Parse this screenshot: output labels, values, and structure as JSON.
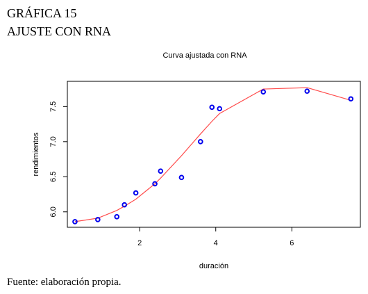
{
  "header": {
    "figure_label": "GRÁFICA 15",
    "figure_title": "AJUSTE CON RNA"
  },
  "source_note": "Fuente: elaboración propia.",
  "chart_data": {
    "type": "scatter",
    "title": "Curva ajustada con RNA",
    "xlabel": "duración",
    "ylabel": "rendimientos",
    "xlim": [
      0.1,
      7.8
    ],
    "ylim": [
      5.78,
      7.86
    ],
    "xticks": [
      2,
      4,
      6
    ],
    "yticks": [
      6.0,
      6.5,
      7.0,
      7.5
    ],
    "ytick_labels": [
      "6.0",
      "6.5",
      "7.0",
      "7.5"
    ],
    "grid": false,
    "colors": {
      "points": "#0000ee",
      "curve": "#ff4d4d",
      "axes": "#000000"
    },
    "series": [
      {
        "kind": "points",
        "x": [
          0.3,
          0.9,
          1.4,
          1.6,
          1.9,
          2.4,
          2.55,
          3.1,
          3.6,
          3.9,
          4.1,
          5.25,
          6.4,
          7.55
        ],
        "y": [
          5.86,
          5.89,
          5.93,
          6.1,
          6.27,
          6.4,
          6.58,
          6.49,
          7.0,
          7.49,
          7.47,
          7.71,
          7.72,
          7.61
        ]
      },
      {
        "kind": "curve",
        "x": [
          0.3,
          0.9,
          1.4,
          1.6,
          1.9,
          2.4,
          2.55,
          3.1,
          3.6,
          3.9,
          4.1,
          5.25,
          6.4,
          7.55
        ],
        "y": [
          5.86,
          5.91,
          6.02,
          6.08,
          6.18,
          6.4,
          6.48,
          6.8,
          7.11,
          7.29,
          7.4,
          7.75,
          7.77,
          7.59
        ]
      }
    ]
  }
}
